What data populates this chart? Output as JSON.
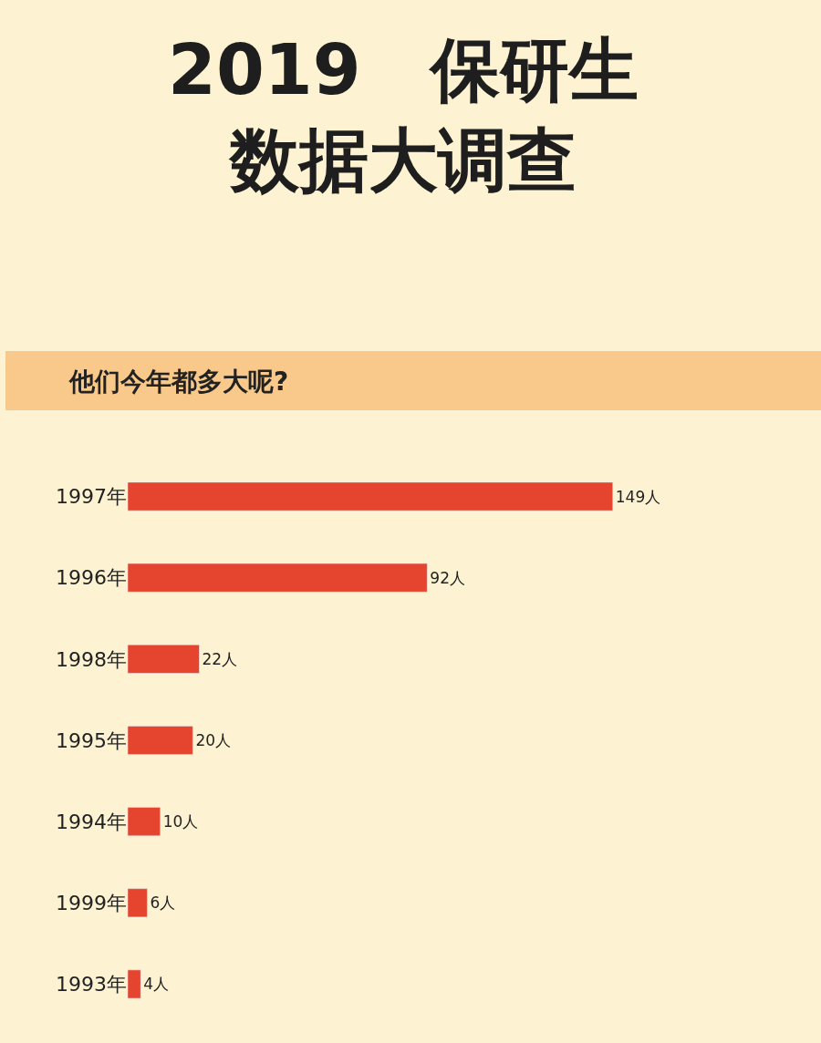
{
  "chart_data": {
    "type": "bar",
    "orientation": "horizontal",
    "title": "2019　保研生数据大调查",
    "subtitle": "他们今年都多大呢?",
    "categories": [
      "1997年",
      "1996年",
      "1998年",
      "1995年",
      "1994年",
      "1999年",
      "1993年"
    ],
    "values": [
      149,
      92,
      22,
      20,
      10,
      6,
      4
    ],
    "value_labels": [
      "149人",
      "92人",
      "22人",
      "20人",
      "10人",
      "6人",
      "4人"
    ],
    "color": "#e5452f",
    "grid": false,
    "legend": false
  }
}
